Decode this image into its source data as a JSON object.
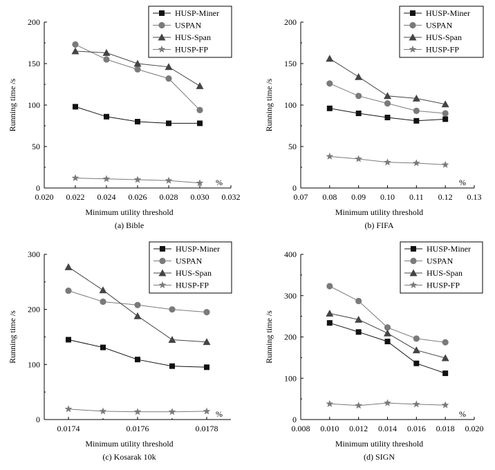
{
  "chart_data": [
    {
      "type": "line",
      "caption": "(a) Bible",
      "xlabel": "Minimum utility threshold",
      "ylabel": "Running time /s",
      "unit": "%",
      "xlim": [
        0.02,
        0.032
      ],
      "xticks": [
        "0.020",
        "0.022",
        "0.024",
        "0.026",
        "0.028",
        "0.030",
        "0.032"
      ],
      "ylim": [
        0,
        200
      ],
      "yticks": [
        "0",
        "50",
        "100",
        "150",
        "200"
      ],
      "x": [
        0.022,
        0.024,
        0.026,
        0.028,
        0.03
      ],
      "series": [
        {
          "name": "HUSP-Miner",
          "values": [
            98,
            86,
            80,
            78,
            78
          ]
        },
        {
          "name": "USPAN",
          "values": [
            173,
            155,
            143,
            132,
            94
          ]
        },
        {
          "name": "HUS-Span",
          "values": [
            165,
            163,
            150,
            146,
            123
          ]
        },
        {
          "name": "HUSP-FP",
          "values": [
            12,
            11,
            10,
            9,
            6
          ]
        }
      ]
    },
    {
      "type": "line",
      "caption": "(b) FIFA",
      "xlabel": "Minimum utility threshold",
      "ylabel": "Running time /s",
      "unit": "%",
      "xlim": [
        0.07,
        0.13
      ],
      "xticks": [
        "0.07",
        "0.08",
        "0.09",
        "0.10",
        "0.11",
        "0.12",
        "0.13"
      ],
      "ylim": [
        0,
        200
      ],
      "yticks": [
        "0",
        "50",
        "100",
        "150",
        "200"
      ],
      "x": [
        0.08,
        0.09,
        0.1,
        0.11,
        0.12
      ],
      "series": [
        {
          "name": "HUSP-Miner",
          "values": [
            96,
            90,
            85,
            81,
            83
          ]
        },
        {
          "name": "USPAN",
          "values": [
            126,
            111,
            102,
            93,
            90
          ]
        },
        {
          "name": "HUS-Span",
          "values": [
            156,
            134,
            111,
            108,
            101
          ]
        },
        {
          "name": "HUSP-FP",
          "values": [
            38,
            35,
            31,
            30,
            28
          ]
        }
      ]
    },
    {
      "type": "line",
      "caption": "(c) Kosarak 10k",
      "xlabel": "Minimum utility threshold",
      "ylabel": "Running time /s",
      "unit": "%",
      "xlim": [
        0.01733,
        0.01787
      ],
      "xticks": [
        "0.0174",
        "0.0176",
        "0.0178"
      ],
      "xtick_values": [
        0.0174,
        0.0176,
        0.0178
      ],
      "ylim": [
        0,
        300
      ],
      "yticks": [
        "0",
        "100",
        "200",
        "300"
      ],
      "x": [
        0.0174,
        0.0175,
        0.0176,
        0.0177,
        0.0178
      ],
      "series": [
        {
          "name": "HUSP-Miner",
          "values": [
            145,
            131,
            109,
            97,
            95
          ]
        },
        {
          "name": "USPAN",
          "values": [
            234,
            214,
            208,
            200,
            195
          ]
        },
        {
          "name": "HUS-Span",
          "values": [
            277,
            235,
            188,
            145,
            141
          ]
        },
        {
          "name": "HUSP-FP",
          "values": [
            19,
            15,
            14,
            14,
            15
          ]
        }
      ]
    },
    {
      "type": "line",
      "caption": "(d) SIGN",
      "xlabel": "Minimum utility threshold",
      "ylabel": "Running time /s",
      "unit": "%",
      "xlim": [
        0.008,
        0.02
      ],
      "xticks": [
        "0.008",
        "0.010",
        "0.012",
        "0.014",
        "0.016",
        "0.018",
        "0.020"
      ],
      "ylim": [
        0,
        400
      ],
      "yticks": [
        "0",
        "100",
        "200",
        "300",
        "400"
      ],
      "x": [
        0.01,
        0.012,
        0.014,
        0.016,
        0.018
      ],
      "series": [
        {
          "name": "HUSP-Miner",
          "values": [
            234,
            212,
            189,
            136,
            112
          ]
        },
        {
          "name": "USPAN",
          "values": [
            323,
            287,
            223,
            196,
            187
          ]
        },
        {
          "name": "HUS-Span",
          "values": [
            257,
            242,
            209,
            168,
            149
          ]
        },
        {
          "name": "HUSP-FP",
          "values": [
            38,
            34,
            40,
            37,
            35
          ]
        }
      ]
    }
  ],
  "styles": {
    "HUSP-Miner": {
      "marker": "square",
      "color": "#111111"
    },
    "USPAN": {
      "marker": "circle",
      "color": "#7a7a7a"
    },
    "HUS-Span": {
      "marker": "triangle",
      "color": "#444444"
    },
    "HUSP-FP": {
      "marker": "star",
      "color": "#7a7a7a"
    }
  }
}
